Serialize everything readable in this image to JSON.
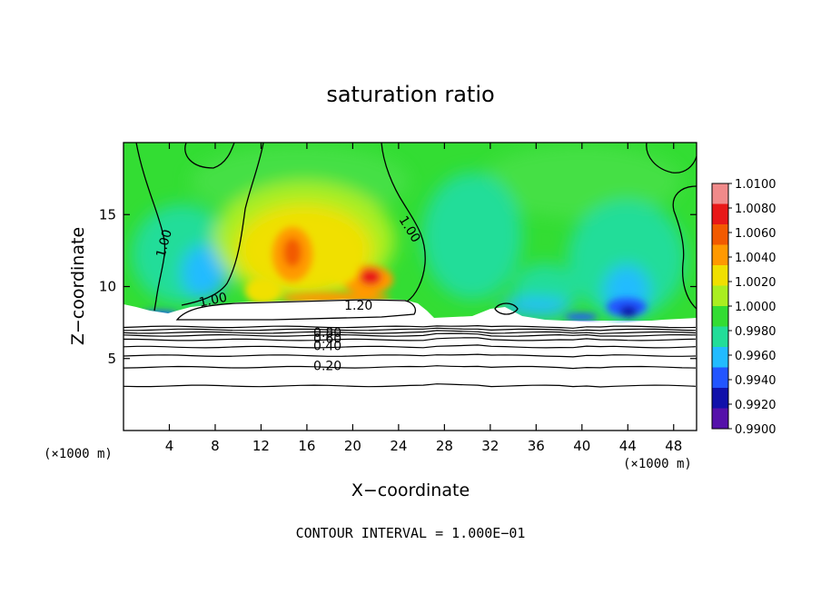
{
  "chart_data": {
    "type": "heatmap",
    "title": "saturation ratio",
    "xlabel": "X−coordinate",
    "ylabel": "Z−coordinate",
    "x_unit": "(×1000 m)",
    "y_unit": "(×1000 m)",
    "xlim": [
      0,
      50
    ],
    "ylim": [
      0,
      20
    ],
    "x_ticks": [
      4,
      8,
      12,
      16,
      20,
      24,
      28,
      32,
      36,
      40,
      44,
      48
    ],
    "y_ticks": [
      5,
      10,
      15
    ],
    "footnote": "CONTOUR INTERVAL = 1.000E−01",
    "colorbar": {
      "labels": [
        "1.0100",
        "1.0080",
        "1.0060",
        "1.0040",
        "1.0020",
        "1.0000",
        "0.9980",
        "0.9960",
        "0.9940",
        "0.9920",
        "0.9900"
      ],
      "colors": [
        "#f08a8a",
        "#e81818",
        "#f25a00",
        "#ff9900",
        "#f0e000",
        "#aaee20",
        "#33dd33",
        "#22dd99",
        "#22bbff",
        "#2255ff",
        "#1111aa",
        "#5511aa"
      ]
    },
    "contour_levels": [
      {
        "label": "1.00",
        "x": 3.5,
        "y": 13.0
      },
      {
        "label": "1.00",
        "x": 7.8,
        "y": 9.1
      },
      {
        "label": "1.00",
        "x": 25.0,
        "y": 14.0
      },
      {
        "label": "1.20",
        "x": 20.5,
        "y": 8.7
      },
      {
        "label": "0.80",
        "x": 17.8,
        "y": 6.8
      },
      {
        "label": "0.60",
        "x": 17.8,
        "y": 6.4
      },
      {
        "label": "0.40",
        "x": 17.8,
        "y": 5.9
      },
      {
        "label": "0.20",
        "x": 17.8,
        "y": 4.5
      }
    ],
    "flat_contours_z": [
      3.1,
      4.4,
      5.2,
      5.8,
      6.3,
      6.6,
      6.8,
      7.0,
      7.2
    ],
    "grid": false
  }
}
